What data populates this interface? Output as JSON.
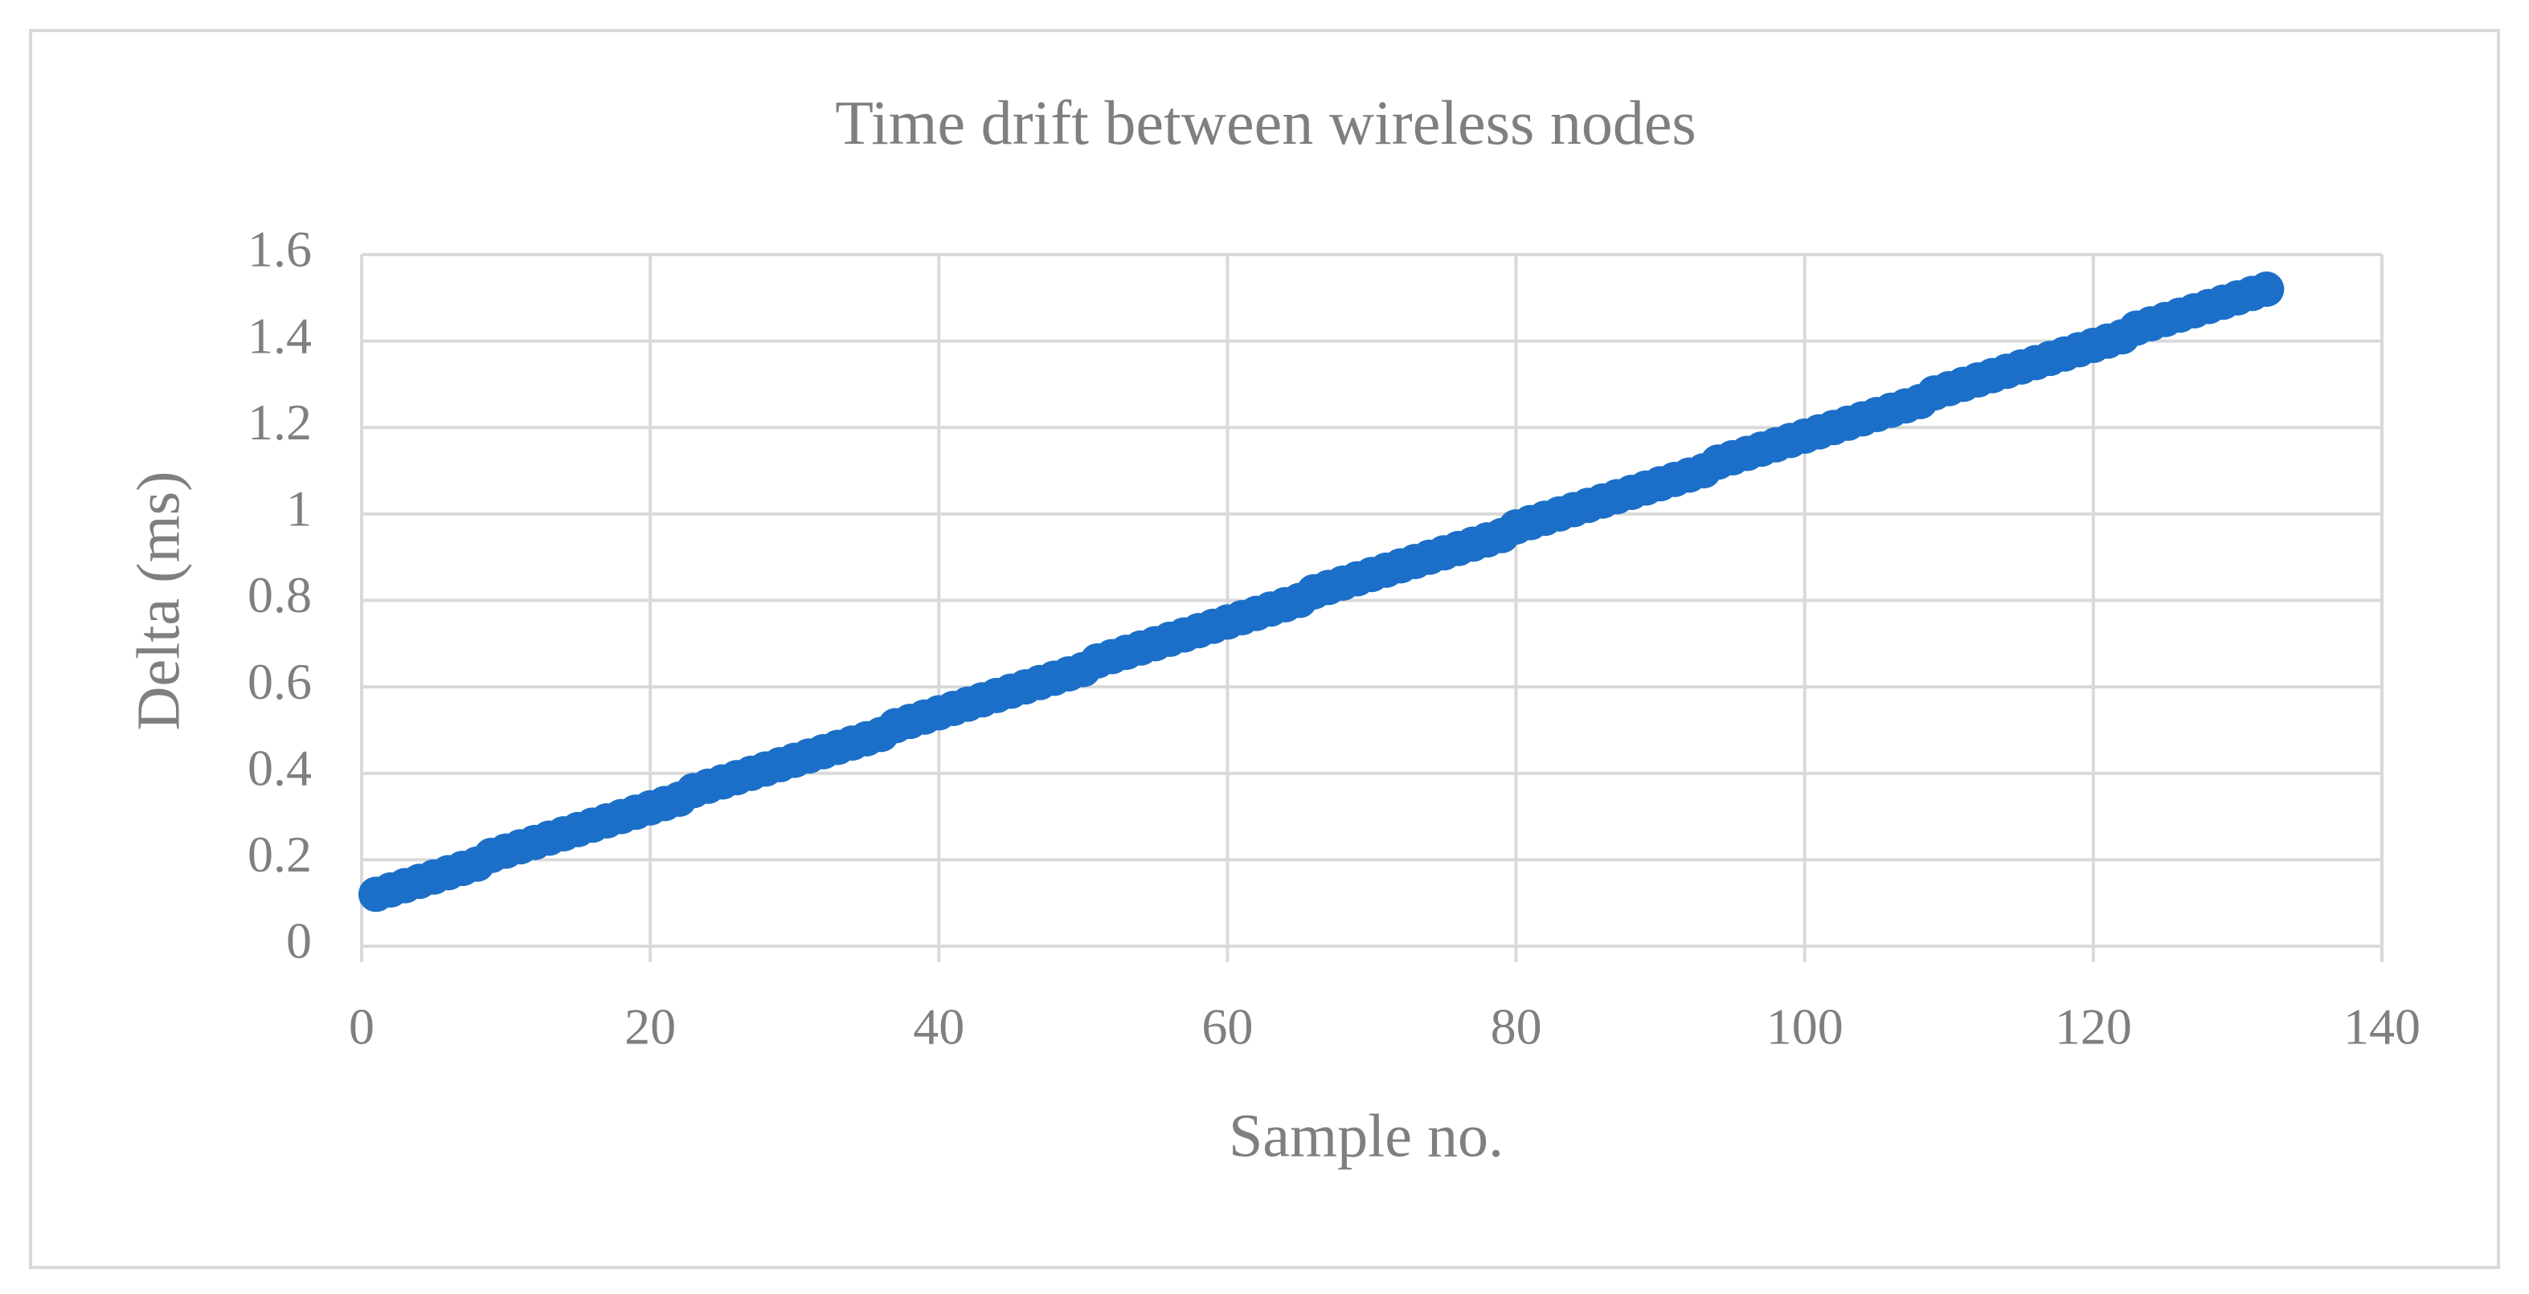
{
  "chart_data": {
    "type": "scatter",
    "title": "Time drift between wireless nodes",
    "x_label": "Sample no.",
    "y_label": "Delta (ms)",
    "x": [
      1,
      2,
      3,
      4,
      5,
      6,
      7,
      8,
      9,
      10,
      11,
      12,
      13,
      14,
      15,
      16,
      17,
      18,
      19,
      20,
      21,
      22,
      23,
      24,
      25,
      26,
      27,
      28,
      29,
      30,
      31,
      32,
      33,
      34,
      35,
      36,
      37,
      38,
      39,
      40,
      41,
      42,
      43,
      44,
      45,
      46,
      47,
      48,
      49,
      50,
      51,
      52,
      53,
      54,
      55,
      56,
      57,
      58,
      59,
      60,
      61,
      62,
      63,
      64,
      65,
      66,
      67,
      68,
      69,
      70,
      71,
      72,
      73,
      74,
      75,
      76,
      77,
      78,
      79,
      80,
      81,
      82,
      83,
      84,
      85,
      86,
      87,
      88,
      89,
      90,
      91,
      92,
      93,
      94,
      95,
      96,
      97,
      98,
      99,
      100,
      101,
      102,
      103,
      104,
      105,
      106,
      107,
      108,
      109,
      110,
      111,
      112,
      113,
      114,
      115,
      116,
      117,
      118,
      119,
      120,
      121,
      122,
      123,
      124,
      125,
      126,
      127,
      128,
      129,
      130,
      131,
      132
    ],
    "values": [
      0.12,
      0.13,
      0.14,
      0.15,
      0.16,
      0.17,
      0.18,
      0.19,
      0.21,
      0.22,
      0.23,
      0.24,
      0.25,
      0.26,
      0.27,
      0.28,
      0.29,
      0.3,
      0.31,
      0.32,
      0.33,
      0.34,
      0.36,
      0.37,
      0.38,
      0.39,
      0.4,
      0.41,
      0.42,
      0.43,
      0.44,
      0.45,
      0.46,
      0.47,
      0.48,
      0.49,
      0.51,
      0.52,
      0.53,
      0.54,
      0.55,
      0.56,
      0.57,
      0.58,
      0.59,
      0.6,
      0.61,
      0.62,
      0.63,
      0.64,
      0.66,
      0.67,
      0.68,
      0.69,
      0.7,
      0.71,
      0.72,
      0.73,
      0.74,
      0.75,
      0.76,
      0.77,
      0.78,
      0.79,
      0.8,
      0.82,
      0.83,
      0.84,
      0.85,
      0.86,
      0.87,
      0.88,
      0.89,
      0.9,
      0.91,
      0.92,
      0.93,
      0.94,
      0.95,
      0.97,
      0.98,
      0.99,
      1.0,
      1.01,
      1.02,
      1.03,
      1.04,
      1.05,
      1.06,
      1.07,
      1.08,
      1.09,
      1.1,
      1.12,
      1.13,
      1.14,
      1.15,
      1.16,
      1.17,
      1.18,
      1.19,
      1.2,
      1.21,
      1.22,
      1.23,
      1.24,
      1.25,
      1.26,
      1.28,
      1.29,
      1.3,
      1.31,
      1.32,
      1.33,
      1.34,
      1.35,
      1.36,
      1.37,
      1.38,
      1.39,
      1.4,
      1.41,
      1.43,
      1.44,
      1.45,
      1.46,
      1.47,
      1.48,
      1.49,
      1.5,
      1.51,
      1.52
    ],
    "color": "#1b6fc8",
    "xlim": [
      0,
      140
    ],
    "xticks": [
      0,
      20,
      40,
      60,
      80,
      100,
      120,
      140
    ],
    "ylim": [
      0,
      1.6
    ],
    "yticks": [
      0,
      0.2,
      0.4,
      0.6,
      0.8,
      1,
      1.2,
      1.4,
      1.6
    ],
    "grid": true
  }
}
